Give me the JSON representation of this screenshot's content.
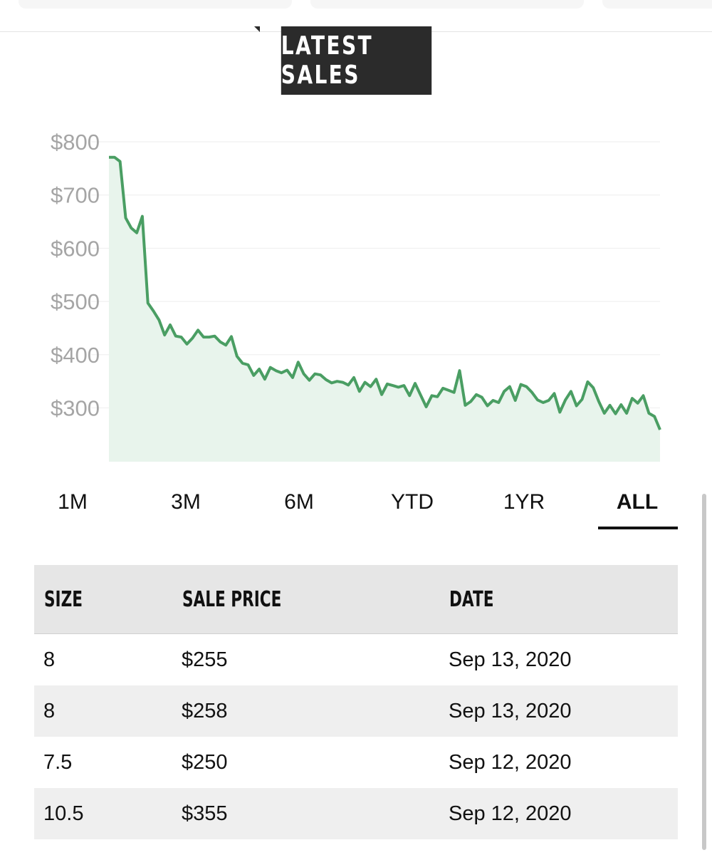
{
  "section_title": "LATEST SALES",
  "chart_data": {
    "type": "area",
    "title": "",
    "xlabel": "",
    "ylabel": "",
    "y_ticks": [
      "$800",
      "$700",
      "$600",
      "$500",
      "$400",
      "$300"
    ],
    "ylim": [
      205,
      800
    ],
    "grid": true,
    "colors": {
      "line": "#4a9e63",
      "fill": "#e8f4ec"
    },
    "series": [
      {
        "values": [
          771,
          771,
          763,
          657,
          638,
          629,
          660,
          497,
          482,
          465,
          437,
          456,
          435,
          433,
          420,
          431,
          446,
          433,
          433,
          435,
          424,
          418,
          434,
          397,
          384,
          381,
          361,
          373,
          354,
          376,
          370,
          366,
          371,
          357,
          386,
          364,
          352,
          364,
          362,
          353,
          347,
          350,
          348,
          343,
          357,
          331,
          348,
          340,
          354,
          325,
          345,
          342,
          339,
          342,
          323,
          346,
          324,
          302,
          323,
          321,
          337,
          333,
          329,
          370,
          305,
          312,
          325,
          320,
          304,
          314,
          310,
          331,
          340,
          314,
          344,
          340,
          329,
          315,
          310,
          314,
          327,
          292,
          315,
          331,
          304,
          316,
          349,
          338,
          312,
          290,
          305,
          289,
          306,
          290,
          318,
          309,
          323,
          290,
          284,
          259
        ]
      }
    ]
  },
  "range_tabs": [
    "1M",
    "3M",
    "6M",
    "YTD",
    "1YR",
    "ALL"
  ],
  "active_tab": "ALL",
  "table": {
    "headers": [
      "SIZE",
      "SALE PRICE",
      "DATE"
    ],
    "rows": [
      [
        "8",
        "$255",
        "Sep 13, 2020"
      ],
      [
        "8",
        "$258",
        "Sep 13, 2020"
      ],
      [
        "7.5",
        "$250",
        "Sep 12, 2020"
      ],
      [
        "10.5",
        "$355",
        "Sep 12, 2020"
      ]
    ]
  }
}
